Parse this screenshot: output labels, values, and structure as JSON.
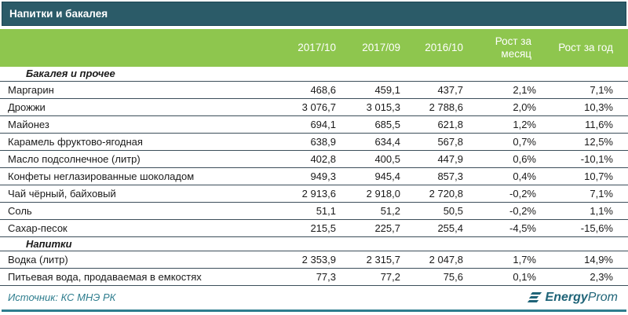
{
  "title_bar": {
    "title": "Напитки и бакалея"
  },
  "table": {
    "columns": [
      "2017/10",
      "2017/09",
      "2016/10",
      "Рост за месяц",
      "Рост за год"
    ],
    "sections": [
      {
        "label": "Бакалея и прочее",
        "rows": [
          {
            "name": "Маргарин",
            "values": [
              "468,6",
              "459,1",
              "437,7",
              "2,1%",
              "7,1%"
            ]
          },
          {
            "name": "Дрожжи",
            "values": [
              "3 076,7",
              "3 015,3",
              "2 788,6",
              "2,0%",
              "10,3%"
            ]
          },
          {
            "name": "Майонез",
            "values": [
              "694,1",
              "685,5",
              "621,8",
              "1,2%",
              "11,6%"
            ]
          },
          {
            "name": "Карамель фруктово-ягодная",
            "values": [
              "638,9",
              "634,4",
              "567,8",
              "0,7%",
              "12,5%"
            ]
          },
          {
            "name": "Масло подсолнечное (литр)",
            "values": [
              "402,8",
              "400,5",
              "447,9",
              "0,6%",
              "-10,1%"
            ]
          },
          {
            "name": "Конфеты неглазированные шоколадом",
            "values": [
              "949,3",
              "945,4",
              "857,3",
              "0,4%",
              "10,7%"
            ]
          },
          {
            "name": "Чай чёрный, байховый",
            "values": [
              "2 913,6",
              "2 918,0",
              "2 720,8",
              "-0,2%",
              "7,1%"
            ]
          },
          {
            "name": "Соль",
            "values": [
              "51,1",
              "51,2",
              "50,5",
              "-0,2%",
              "1,1%"
            ]
          },
          {
            "name": "Сахар-песок",
            "values": [
              "215,5",
              "225,7",
              "255,4",
              "-4,5%",
              "-15,6%"
            ]
          }
        ]
      },
      {
        "label": "Напитки",
        "rows": [
          {
            "name": "Водка (литр)",
            "values": [
              "2 353,9",
              "2 315,7",
              "2 047,8",
              "1,7%",
              "14,9%"
            ]
          },
          {
            "name": "Питьевая вода, продаваемая в емкостях",
            "values": [
              "77,3",
              "77,2",
              "75,6",
              "0,1%",
              "2,3%"
            ]
          }
        ]
      }
    ]
  },
  "footer": {
    "source": "Источник: КС МНЭ РК",
    "logo_bold": "Energy",
    "logo_light": "Prom"
  },
  "colors": {
    "title_bar_bg": "#2b5b68",
    "header_green": "#8ec64e",
    "accent_teal": "#2e7d8e",
    "logo_teal": "#1f6478",
    "row_border": "#3c4e5a"
  }
}
